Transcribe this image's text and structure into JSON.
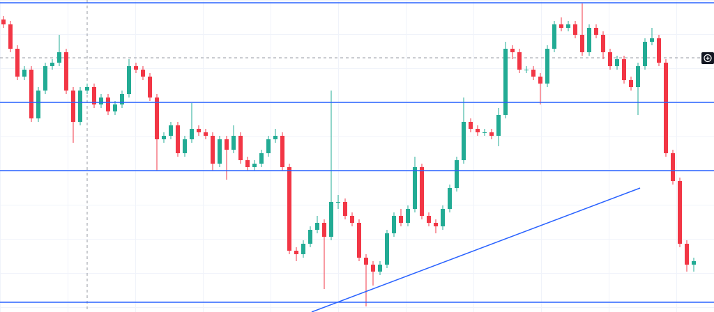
{
  "chart_data": {
    "type": "candlestick",
    "xlim": [
      -0.5,
      101.9
    ],
    "ylim": [
      0,
      448
    ],
    "up_color": "#22ab94",
    "down_color": "#f23645",
    "line_color": "#2962ff",
    "open": [
      420,
      413,
      378,
      338,
      348,
      278,
      318,
      353,
      358,
      373,
      318,
      273,
      318,
      323,
      298,
      308,
      288,
      298,
      313,
      353,
      348,
      338,
      308,
      248,
      253,
      268,
      228,
      248,
      263,
      258,
      253,
      213,
      248,
      233,
      253,
      218,
      208,
      213,
      228,
      248,
      253,
      208,
      88,
      83,
      98,
      118,
      128,
      108,
      158,
      158,
      138,
      128,
      78,
      68,
      58,
      68,
      113,
      138,
      128,
      148,
      208,
      138,
      128,
      123,
      148,
      178,
      218,
      273,
      263,
      258,
      258,
      253,
      283,
      378,
      373,
      348,
      348,
      338,
      328,
      378,
      413,
      408,
      413,
      398,
      373,
      408,
      398,
      373,
      353,
      363,
      333,
      323,
      353,
      388,
      393,
      358,
      228,
      188,
      98,
      68
    ],
    "high": [
      425,
      418,
      383,
      353,
      353,
      323,
      358,
      363,
      398,
      378,
      323,
      323,
      328,
      328,
      313,
      313,
      303,
      318,
      363,
      358,
      353,
      343,
      313,
      258,
      273,
      273,
      253,
      300,
      268,
      263,
      258,
      253,
      253,
      268,
      258,
      223,
      218,
      233,
      253,
      263,
      258,
      213,
      93,
      103,
      123,
      138,
      133,
      318,
      168,
      163,
      143,
      133,
      83,
      73,
      73,
      118,
      143,
      148,
      153,
      223,
      213,
      143,
      133,
      153,
      183,
      223,
      308,
      278,
      268,
      263,
      263,
      293,
      388,
      383,
      378,
      353,
      353,
      343,
      383,
      418,
      423,
      418,
      418,
      443,
      413,
      413,
      403,
      378,
      368,
      368,
      338,
      358,
      393,
      408,
      398,
      363,
      233,
      193,
      103,
      78
    ],
    "low": [
      408,
      373,
      333,
      333,
      273,
      273,
      313,
      348,
      353,
      313,
      243,
      268,
      313,
      293,
      293,
      283,
      283,
      293,
      308,
      343,
      333,
      303,
      203,
      243,
      248,
      223,
      223,
      243,
      253,
      248,
      203,
      208,
      190,
      228,
      213,
      203,
      203,
      208,
      223,
      243,
      203,
      83,
      73,
      78,
      93,
      113,
      33,
      103,
      148,
      133,
      123,
      73,
      8,
      38,
      53,
      63,
      108,
      123,
      123,
      143,
      133,
      123,
      113,
      118,
      143,
      173,
      213,
      258,
      253,
      253,
      248,
      238,
      278,
      363,
      343,
      343,
      333,
      298,
      323,
      373,
      403,
      403,
      393,
      368,
      368,
      393,
      363,
      348,
      348,
      328,
      318,
      283,
      348,
      383,
      353,
      223,
      183,
      93,
      58,
      58
    ],
    "close": [
      413,
      378,
      338,
      348,
      278,
      318,
      353,
      358,
      373,
      318,
      273,
      318,
      323,
      298,
      308,
      288,
      298,
      313,
      353,
      348,
      338,
      308,
      248,
      253,
      268,
      228,
      248,
      263,
      258,
      253,
      213,
      248,
      233,
      253,
      218,
      208,
      213,
      228,
      248,
      253,
      208,
      88,
      83,
      98,
      118,
      128,
      108,
      158,
      158,
      138,
      128,
      78,
      68,
      58,
      68,
      113,
      138,
      128,
      148,
      208,
      138,
      128,
      123,
      148,
      178,
      218,
      273,
      263,
      258,
      258,
      253,
      283,
      378,
      373,
      348,
      348,
      338,
      328,
      378,
      413,
      408,
      413,
      398,
      373,
      408,
      398,
      373,
      353,
      363,
      333,
      323,
      353,
      388,
      393,
      358,
      228,
      188,
      98,
      68,
      73
    ],
    "levels": [
      444,
      301,
      203,
      14
    ],
    "trend_line": {
      "x": [
        44.2,
        91.3
      ],
      "values": [
        0,
        178
      ]
    },
    "crosshair": {
      "x": 12,
      "y": 365
    }
  }
}
